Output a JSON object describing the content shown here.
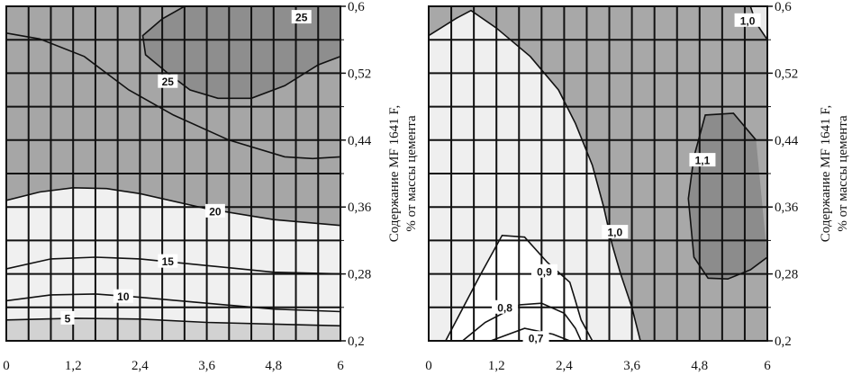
{
  "chart_data": [
    {
      "type": "contour",
      "xlabel": "",
      "ylabel_line1": "Содержание MF 1641 F,",
      "ylabel_line2": "% от массы цемента",
      "xlim": [
        0,
        6
      ],
      "ylim": [
        0.2,
        0.6
      ],
      "x_ticks": [
        "0",
        "1,2",
        "2,4",
        "3,6",
        "4,8",
        "6"
      ],
      "y_ticks": [
        "0,2",
        "0,28",
        "0,36",
        "0,44",
        "0,52",
        "0,6"
      ],
      "grid": true,
      "contours": [
        {
          "level": "5",
          "points": [
            [
              0,
              0.225
            ],
            [
              1.2,
              0.227
            ],
            [
              2.4,
              0.226
            ],
            [
              3.6,
              0.222
            ],
            [
              4.8,
              0.22
            ],
            [
              6,
              0.218
            ]
          ]
        },
        {
          "level": "10",
          "points": [
            [
              0,
              0.248
            ],
            [
              0.8,
              0.255
            ],
            [
              1.6,
              0.256
            ],
            [
              2.4,
              0.252
            ],
            [
              3.6,
              0.245
            ],
            [
              4.8,
              0.238
            ],
            [
              6,
              0.235
            ]
          ]
        },
        {
          "level": "15",
          "points": [
            [
              0,
              0.286
            ],
            [
              0.8,
              0.298
            ],
            [
              1.6,
              0.3
            ],
            [
              2.4,
              0.298
            ],
            [
              3.6,
              0.29
            ],
            [
              4.8,
              0.282
            ],
            [
              6,
              0.28
            ]
          ]
        },
        {
          "level": "20",
          "points": [
            [
              0,
              0.368
            ],
            [
              0.6,
              0.378
            ],
            [
              1.2,
              0.383
            ],
            [
              1.8,
              0.382
            ],
            [
              2.4,
              0.376
            ],
            [
              3.6,
              0.358
            ],
            [
              4.8,
              0.345
            ],
            [
              6,
              0.338
            ]
          ]
        },
        {
          "level": "25",
          "points": [
            [
              0,
              0.568
            ],
            [
              0.6,
              0.561
            ],
            [
              1.4,
              0.54
            ],
            [
              2.2,
              0.5
            ],
            [
              3.0,
              0.47
            ],
            [
              4.0,
              0.44
            ],
            [
              5.0,
              0.42
            ],
            [
              5.5,
              0.418
            ],
            [
              6,
              0.42
            ]
          ]
        },
        {
          "level": "25",
          "points": [
            [
              3.2,
              0.6
            ],
            [
              2.8,
              0.585
            ],
            [
              2.45,
              0.565
            ],
            [
              2.5,
              0.542
            ],
            [
              2.9,
              0.52
            ],
            [
              3.3,
              0.5
            ],
            [
              3.8,
              0.49
            ],
            [
              4.4,
              0.49
            ],
            [
              5.0,
              0.505
            ],
            [
              5.6,
              0.53
            ],
            [
              6,
              0.54
            ]
          ]
        }
      ],
      "labels": [
        {
          "text": "25",
          "x": 5.3,
          "y": 0.587
        },
        {
          "text": "25",
          "x": 2.9,
          "y": 0.51
        },
        {
          "text": "20",
          "x": 3.75,
          "y": 0.355
        },
        {
          "text": "15",
          "x": 2.9,
          "y": 0.295
        },
        {
          "text": "10",
          "x": 2.1,
          "y": 0.253
        },
        {
          "text": "5",
          "x": 1.1,
          "y": 0.227
        }
      ]
    },
    {
      "type": "contour",
      "xlabel": "",
      "ylabel_line1": "Содержание MF 1641 F,",
      "ylabel_line2": "% от массы цемента",
      "xlim": [
        0,
        6
      ],
      "ylim": [
        0.2,
        0.6
      ],
      "x_ticks": [
        "0",
        "1,2",
        "2,4",
        "3,6",
        "4,8",
        "6"
      ],
      "y_ticks": [
        "0,2",
        "0,28",
        "0,36",
        "0,44",
        "0,52",
        "0,6"
      ],
      "grid": true,
      "contours": [
        {
          "level": "1,0",
          "points": [
            [
              0,
              0.565
            ],
            [
              0.5,
              0.586
            ],
            [
              0.75,
              0.595
            ],
            [
              1.2,
              0.574
            ],
            [
              1.8,
              0.54
            ],
            [
              2.3,
              0.5
            ],
            [
              2.6,
              0.46
            ],
            [
              2.9,
              0.41
            ],
            [
              3.1,
              0.36
            ],
            [
              3.25,
              0.315
            ],
            [
              3.4,
              0.28
            ],
            [
              3.6,
              0.24
            ],
            [
              3.75,
              0.2
            ]
          ]
        },
        {
          "level": "1,0",
          "points": [
            [
              5.7,
              0.6
            ],
            [
              5.8,
              0.58
            ],
            [
              6,
              0.56
            ]
          ]
        },
        {
          "level": "1,1",
          "points": [
            [
              5.8,
              0.44
            ],
            [
              5.4,
              0.472
            ],
            [
              4.9,
              0.47
            ],
            [
              4.7,
              0.42
            ],
            [
              4.6,
              0.37
            ],
            [
              4.7,
              0.3
            ],
            [
              4.95,
              0.275
            ],
            [
              5.3,
              0.274
            ],
            [
              5.7,
              0.285
            ],
            [
              6,
              0.3
            ]
          ]
        },
        {
          "level": "0,9",
          "points": [
            [
              0.3,
              0.2
            ],
            [
              0.9,
              0.277
            ],
            [
              1.3,
              0.326
            ],
            [
              1.7,
              0.324
            ],
            [
              2.1,
              0.294
            ],
            [
              2.5,
              0.27
            ],
            [
              2.6,
              0.248
            ],
            [
              2.7,
              0.225
            ],
            [
              2.9,
              0.2
            ]
          ]
        },
        {
          "level": "0,8",
          "points": [
            [
              0.6,
              0.2
            ],
            [
              1.0,
              0.222
            ],
            [
              1.6,
              0.243
            ],
            [
              2.0,
              0.245
            ],
            [
              2.4,
              0.233
            ],
            [
              2.6,
              0.215
            ],
            [
              2.7,
              0.2
            ]
          ]
        },
        {
          "level": "0,7",
          "points": [
            [
              1.1,
              0.2
            ],
            [
              1.7,
              0.215
            ],
            [
              2.2,
              0.208
            ],
            [
              2.5,
              0.2
            ]
          ]
        }
      ],
      "labels": [
        {
          "text": "1,0",
          "x": 5.65,
          "y": 0.583
        },
        {
          "text": "1,1",
          "x": 4.85,
          "y": 0.416
        },
        {
          "text": "1,0",
          "x": 3.3,
          "y": 0.33
        },
        {
          "text": "0,9",
          "x": 2.05,
          "y": 0.283
        },
        {
          "text": "0,8",
          "x": 1.35,
          "y": 0.24
        },
        {
          "text": "0,7",
          "x": 1.9,
          "y": 0.203
        }
      ]
    }
  ]
}
